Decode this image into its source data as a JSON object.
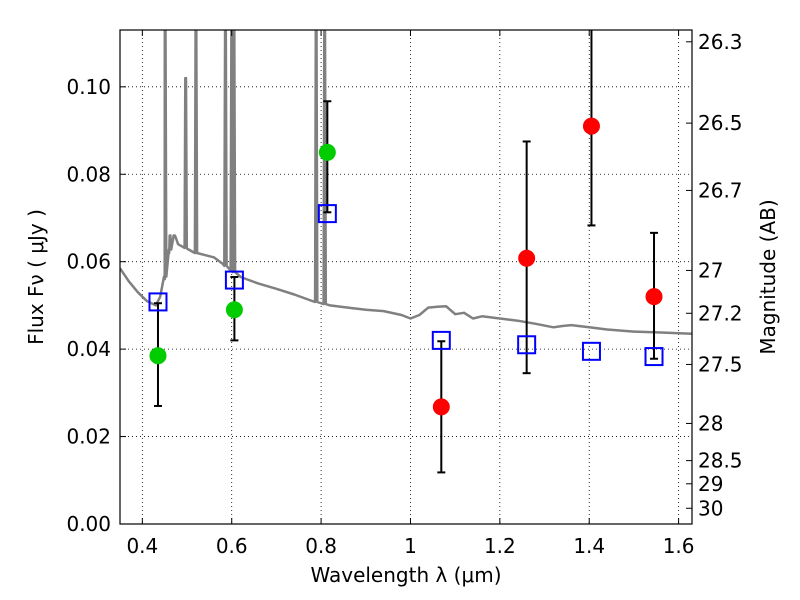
{
  "chart_data": {
    "type": "scatter",
    "xlabel": "Wavelength  λ (μm)",
    "ylabel": "Flux  Fν  ( μJy )",
    "ylabel_right": "Magnitude (AB)",
    "xlim": [
      0.35,
      1.63
    ],
    "ylim": [
      0.0,
      0.113
    ],
    "grid": true,
    "x_ticks": [
      0.4,
      0.6,
      0.8,
      1.0,
      1.2,
      1.4,
      1.6
    ],
    "x_tick_labels": [
      "0.4",
      "0.6",
      "0.8",
      "1",
      "1.2",
      "1.4",
      "1.6"
    ],
    "y_ticks": [
      0.0,
      0.02,
      0.04,
      0.06,
      0.08,
      0.1
    ],
    "y_tick_labels": [
      "0.00",
      "0.02",
      "0.04",
      "0.06",
      "0.08",
      "0.10"
    ],
    "right_ticks": [
      {
        "label": "26.3",
        "flux": 0.1103
      },
      {
        "label": "26.5",
        "flux": 0.0917
      },
      {
        "label": "26.7",
        "flux": 0.0763
      },
      {
        "label": "27",
        "flux": 0.058
      },
      {
        "label": "27.2",
        "flux": 0.0482
      },
      {
        "label": "27.5",
        "flux": 0.0365
      },
      {
        "label": "28",
        "flux": 0.023
      },
      {
        "label": "28.5",
        "flux": 0.0145
      },
      {
        "label": "29",
        "flux": 0.0092
      },
      {
        "label": "30",
        "flux": 0.0036
      }
    ],
    "series": [
      {
        "name": "green observed",
        "marker": "circle",
        "color": "#00cc00",
        "points": [
          {
            "x": 0.435,
            "y": 0.0385,
            "err_lo": 0.027,
            "err_hi": 0.0505
          },
          {
            "x": 0.606,
            "y": 0.049,
            "err_lo": 0.042,
            "err_hi": 0.0565
          },
          {
            "x": 0.814,
            "y": 0.085,
            "err_lo": 0.0713,
            "err_hi": 0.0967
          }
        ]
      },
      {
        "name": "red observed",
        "marker": "circle",
        "color": "#ff0000",
        "points": [
          {
            "x": 1.069,
            "y": 0.0268,
            "err_lo": 0.0118,
            "err_hi": 0.0418
          },
          {
            "x": 1.26,
            "y": 0.0608,
            "err_lo": 0.0345,
            "err_hi": 0.0875
          },
          {
            "x": 1.405,
            "y": 0.091,
            "err_lo": 0.0683,
            "err_hi": 0.114
          },
          {
            "x": 1.545,
            "y": 0.052,
            "err_lo": 0.0378,
            "err_hi": 0.0666
          }
        ]
      },
      {
        "name": "model photometry",
        "marker": "square",
        "color": "#0000ff",
        "points": [
          {
            "x": 0.435,
            "y": 0.0508
          },
          {
            "x": 0.606,
            "y": 0.0558
          },
          {
            "x": 0.814,
            "y": 0.071
          },
          {
            "x": 1.069,
            "y": 0.042
          },
          {
            "x": 1.26,
            "y": 0.041
          },
          {
            "x": 1.405,
            "y": 0.0395
          },
          {
            "x": 1.545,
            "y": 0.0383
          }
        ]
      }
    ],
    "spectrum": {
      "name": "model spectrum",
      "color": "#808080",
      "continuum": [
        [
          0.35,
          0.0585
        ],
        [
          0.37,
          0.0555
        ],
        [
          0.39,
          0.053
        ],
        [
          0.41,
          0.051
        ],
        [
          0.43,
          0.05
        ],
        [
          0.44,
          0.052
        ],
        [
          0.45,
          0.056
        ],
        [
          0.46,
          0.062
        ],
        [
          0.47,
          0.066
        ],
        [
          0.48,
          0.064
        ],
        [
          0.5,
          0.063
        ],
        [
          0.52,
          0.062
        ],
        [
          0.54,
          0.0615
        ],
        [
          0.56,
          0.061
        ],
        [
          0.58,
          0.0595
        ],
        [
          0.6,
          0.058
        ],
        [
          0.62,
          0.0565
        ],
        [
          0.66,
          0.055
        ],
        [
          0.7,
          0.0538
        ],
        [
          0.74,
          0.0525
        ],
        [
          0.78,
          0.051
        ],
        [
          0.82,
          0.05
        ],
        [
          0.86,
          0.0495
        ],
        [
          0.9,
          0.049
        ],
        [
          0.94,
          0.0487
        ],
        [
          0.98,
          0.0478
        ],
        [
          1.0,
          0.047
        ],
        [
          1.02,
          0.0478
        ],
        [
          1.04,
          0.0495
        ],
        [
          1.06,
          0.0497
        ],
        [
          1.08,
          0.0498
        ],
        [
          1.1,
          0.048
        ],
        [
          1.12,
          0.0483
        ],
        [
          1.14,
          0.047
        ],
        [
          1.16,
          0.0475
        ],
        [
          1.2,
          0.047
        ],
        [
          1.24,
          0.0465
        ],
        [
          1.28,
          0.0458
        ],
        [
          1.32,
          0.045
        ],
        [
          1.34,
          0.0453
        ],
        [
          1.36,
          0.0455
        ],
        [
          1.4,
          0.045
        ],
        [
          1.44,
          0.0445
        ],
        [
          1.5,
          0.044
        ],
        [
          1.56,
          0.0438
        ],
        [
          1.63,
          0.0435
        ]
      ],
      "lines": [
        {
          "x": 0.451,
          "peak": 0.114
        },
        {
          "x": 0.462,
          "peak": 0.066
        },
        {
          "x": 0.472,
          "peak": 0.066
        },
        {
          "x": 0.497,
          "peak": 0.102
        },
        {
          "x": 0.52,
          "peak": 0.114
        },
        {
          "x": 0.586,
          "peak": 0.114
        },
        {
          "x": 0.6,
          "peak": 0.114
        },
        {
          "x": 0.605,
          "peak": 0.114
        },
        {
          "x": 0.789,
          "peak": 0.114
        },
        {
          "x": 0.808,
          "peak": 0.114
        }
      ]
    }
  }
}
